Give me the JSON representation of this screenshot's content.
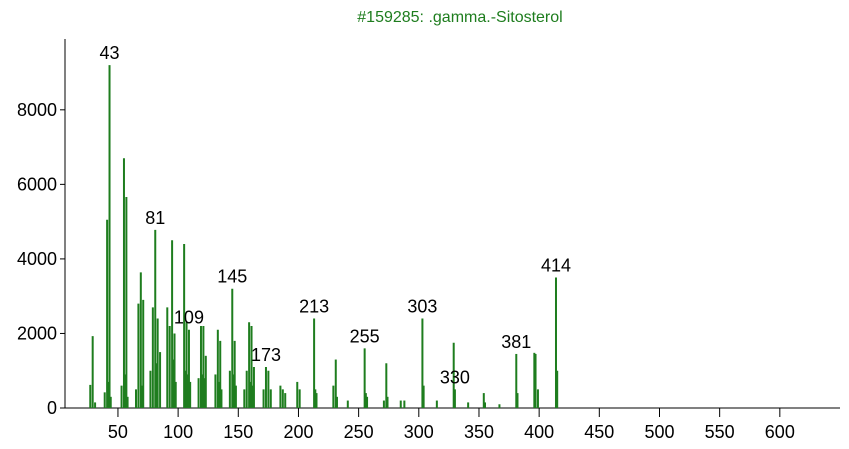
{
  "chart_data": {
    "type": "bar",
    "title": "#159285: .gamma.-Sitosterol",
    "color": "#1e7d1e",
    "x": [
      27,
      29,
      31,
      39,
      41,
      42,
      43,
      44,
      53,
      55,
      56,
      57,
      58,
      65,
      67,
      69,
      70,
      71,
      77,
      79,
      81,
      82,
      83,
      85,
      91,
      93,
      95,
      96,
      97,
      98,
      105,
      106,
      107,
      108,
      109,
      110,
      117,
      119,
      120,
      121,
      122,
      123,
      131,
      133,
      134,
      135,
      136,
      143,
      145,
      146,
      147,
      148,
      155,
      157,
      159,
      160,
      161,
      162,
      163,
      171,
      173,
      175,
      177,
      185,
      187,
      189,
      199,
      201,
      213,
      214,
      215,
      229,
      231,
      232,
      241,
      255,
      256,
      257,
      271,
      273,
      274,
      285,
      288,
      303,
      304,
      315,
      329,
      330,
      341,
      354,
      355,
      367,
      381,
      382,
      396,
      397,
      399,
      414,
      415
    ],
    "values": [
      620,
      1930,
      150,
      420,
      5050,
      700,
      9200,
      300,
      600,
      6700,
      900,
      5660,
      300,
      500,
      2800,
      3640,
      600,
      2900,
      1000,
      2700,
      4780,
      1200,
      2400,
      1500,
      2700,
      2200,
      4500,
      1300,
      2000,
      700,
      4400,
      1000,
      2300,
      900,
      2100,
      700,
      800,
      2200,
      900,
      2200,
      800,
      1400,
      900,
      2100,
      700,
      1800,
      500,
      1000,
      3200,
      900,
      1800,
      600,
      500,
      1000,
      2300,
      700,
      2200,
      600,
      1100,
      500,
      1100,
      1000,
      500,
      600,
      500,
      400,
      700,
      500,
      2400,
      500,
      400,
      600,
      1300,
      300,
      200,
      1600,
      400,
      300,
      200,
      1200,
      300,
      200,
      200,
      2400,
      600,
      200,
      1750,
      500,
      150,
      400,
      150,
      100,
      1450,
      400,
      1480,
      1450,
      500,
      3500,
      1000
    ],
    "peak_labels": [
      43,
      81,
      109,
      145,
      173,
      213,
      255,
      303,
      330,
      381,
      414
    ],
    "xlim": [
      6,
      650
    ],
    "xticks": [
      50,
      100,
      150,
      200,
      250,
      300,
      350,
      400,
      450,
      500,
      550,
      600
    ],
    "ylim": [
      0,
      9900
    ],
    "yticks": [
      0,
      2000,
      4000,
      6000,
      8000
    ]
  }
}
